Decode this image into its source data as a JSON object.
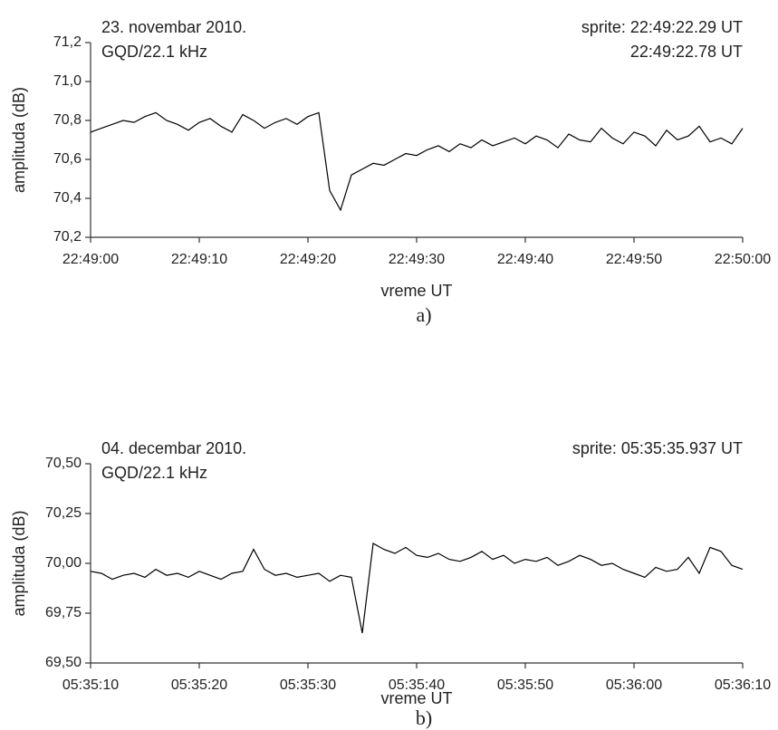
{
  "chart_data": [
    {
      "type": "line",
      "x_label": "vreme UT",
      "y_label": "amplituda (dB)",
      "caption": "a)",
      "annotations_left": [
        "23. novembar 2010.",
        "GQD/22.1 kHz"
      ],
      "annotations_right": [
        "sprite: 22:49:22.29 UT",
        "22:49:22.78 UT"
      ],
      "xlim": [
        "22:49:00",
        "22:50:00"
      ],
      "xticks": [
        "22:49:00",
        "22:49:10",
        "22:49:20",
        "22:49:30",
        "22:49:40",
        "22:49:50",
        "22:50:00"
      ],
      "ylim": [
        70.2,
        71.2
      ],
      "yticks": [
        {
          "value": 70.2,
          "label": "70,2"
        },
        {
          "value": 70.4,
          "label": "70,4"
        },
        {
          "value": 70.6,
          "label": "70,6"
        },
        {
          "value": 70.8,
          "label": "70,8"
        },
        {
          "value": 71.0,
          "label": "71,0"
        },
        {
          "value": 71.2,
          "label": "71,2"
        }
      ],
      "x": [
        "22:49:00",
        "22:49:01",
        "22:49:02",
        "22:49:03",
        "22:49:04",
        "22:49:05",
        "22:49:06",
        "22:49:07",
        "22:49:08",
        "22:49:09",
        "22:49:10",
        "22:49:11",
        "22:49:12",
        "22:49:13",
        "22:49:14",
        "22:49:15",
        "22:49:16",
        "22:49:17",
        "22:49:18",
        "22:49:19",
        "22:49:20",
        "22:49:21",
        "22:49:22",
        "22:49:23",
        "22:49:24",
        "22:49:25",
        "22:49:26",
        "22:49:27",
        "22:49:28",
        "22:49:29",
        "22:49:30",
        "22:49:31",
        "22:49:32",
        "22:49:33",
        "22:49:34",
        "22:49:35",
        "22:49:36",
        "22:49:37",
        "22:49:38",
        "22:49:39",
        "22:49:40",
        "22:49:41",
        "22:49:42",
        "22:49:43",
        "22:49:44",
        "22:49:45",
        "22:49:46",
        "22:49:47",
        "22:49:48",
        "22:49:49",
        "22:49:50",
        "22:49:51",
        "22:49:52",
        "22:49:53",
        "22:49:54",
        "22:49:55",
        "22:49:56",
        "22:49:57",
        "22:49:58",
        "22:49:59",
        "22:50:00"
      ],
      "series": [
        {
          "color": "#000000",
          "values": [
            70.74,
            70.76,
            70.78,
            70.8,
            70.79,
            70.82,
            70.84,
            70.8,
            70.78,
            70.75,
            70.79,
            70.81,
            70.77,
            70.74,
            70.83,
            70.8,
            70.76,
            70.79,
            70.81,
            70.78,
            70.82,
            70.84,
            70.44,
            70.34,
            70.52,
            70.55,
            70.58,
            70.57,
            70.6,
            70.63,
            70.62,
            70.65,
            70.67,
            70.64,
            70.68,
            70.66,
            70.7,
            70.67,
            70.69,
            70.71,
            70.68,
            70.72,
            70.7,
            70.66,
            70.73,
            70.7,
            70.69,
            70.76,
            70.71,
            70.68,
            70.74,
            70.72,
            70.67,
            70.75,
            70.7,
            70.72,
            70.77,
            70.69,
            70.71,
            70.68,
            70.76
          ]
        }
      ]
    },
    {
      "type": "line",
      "x_label": "vreme UT",
      "y_label": "amplituda (dB)",
      "caption": "b)",
      "annotations_left": [
        "04. decembar 2010.",
        "GQD/22.1 kHz"
      ],
      "annotations_right": [
        "sprite: 05:35:35.937 UT"
      ],
      "xlim": [
        "05:35:10",
        "05:36:10"
      ],
      "xticks": [
        "05:35:10",
        "05:35:20",
        "05:35:30",
        "05:35:40",
        "05:35:50",
        "05:36:00",
        "05:36:10"
      ],
      "ylim": [
        69.5,
        70.5
      ],
      "yticks": [
        {
          "value": 69.5,
          "label": "69,50"
        },
        {
          "value": 69.75,
          "label": "69,75"
        },
        {
          "value": 70.0,
          "label": "70,00"
        },
        {
          "value": 70.25,
          "label": "70,25"
        },
        {
          "value": 70.5,
          "label": "70,50"
        }
      ],
      "x": [
        "05:35:10",
        "05:35:11",
        "05:35:12",
        "05:35:13",
        "05:35:14",
        "05:35:15",
        "05:35:16",
        "05:35:17",
        "05:35:18",
        "05:35:19",
        "05:35:20",
        "05:35:21",
        "05:35:22",
        "05:35:23",
        "05:35:24",
        "05:35:25",
        "05:35:26",
        "05:35:27",
        "05:35:28",
        "05:35:29",
        "05:35:30",
        "05:35:31",
        "05:35:32",
        "05:35:33",
        "05:35:34",
        "05:35:35",
        "05:35:36",
        "05:35:37",
        "05:35:38",
        "05:35:39",
        "05:35:40",
        "05:35:41",
        "05:35:42",
        "05:35:43",
        "05:35:44",
        "05:35:45",
        "05:35:46",
        "05:35:47",
        "05:35:48",
        "05:35:49",
        "05:35:50",
        "05:35:51",
        "05:35:52",
        "05:35:53",
        "05:35:54",
        "05:35:55",
        "05:35:56",
        "05:35:57",
        "05:35:58",
        "05:35:59",
        "05:36:00",
        "05:36:01",
        "05:36:02",
        "05:36:03",
        "05:36:04",
        "05:36:05",
        "05:36:06",
        "05:36:07",
        "05:36:08",
        "05:36:09",
        "05:36:10"
      ],
      "series": [
        {
          "color": "#000000",
          "values": [
            69.96,
            69.95,
            69.92,
            69.94,
            69.95,
            69.93,
            69.97,
            69.94,
            69.95,
            69.93,
            69.96,
            69.94,
            69.92,
            69.95,
            69.96,
            70.07,
            69.97,
            69.94,
            69.95,
            69.93,
            69.94,
            69.95,
            69.91,
            69.94,
            69.93,
            69.65,
            70.1,
            70.07,
            70.05,
            70.08,
            70.04,
            70.03,
            70.05,
            70.02,
            70.01,
            70.03,
            70.06,
            70.02,
            70.04,
            70.0,
            70.02,
            70.01,
            70.03,
            69.99,
            70.01,
            70.04,
            70.02,
            69.99,
            70.0,
            69.97,
            69.95,
            69.93,
            69.98,
            69.96,
            69.97,
            70.03,
            69.95,
            70.08,
            70.06,
            69.99,
            69.97
          ]
        }
      ]
    }
  ]
}
